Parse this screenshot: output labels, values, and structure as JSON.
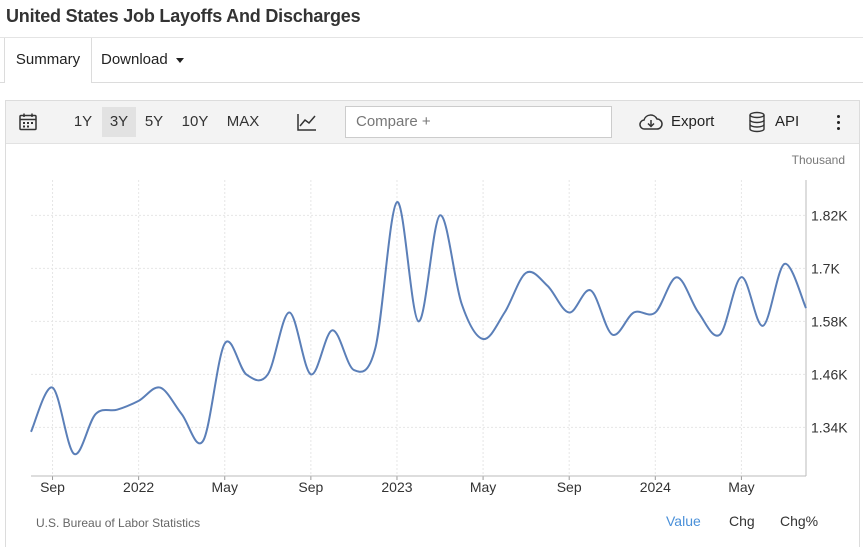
{
  "page": {
    "title": "United States Job Layoffs And Discharges"
  },
  "tabs": {
    "summary": "Summary",
    "download": "Download"
  },
  "toolbar": {
    "ranges": [
      "1Y",
      "3Y",
      "5Y",
      "10Y",
      "MAX"
    ],
    "active_range": "3Y",
    "compare_placeholder": "Compare +",
    "export_label": "Export",
    "api_label": "API"
  },
  "footer": {
    "source": "U.S. Bureau of Labor Statistics",
    "options": [
      "Value",
      "Chg",
      "Chg%"
    ],
    "selected": "Value"
  },
  "colors": {
    "line": "#5b7fb8",
    "grid": "#e6e6e6",
    "accent": "#4a90d9"
  },
  "chart_data": {
    "type": "line",
    "unit_label": "Thousand",
    "y_ticks": [
      1340,
      1460,
      1580,
      1700,
      1820
    ],
    "y_tick_labels": [
      "1.34K",
      "1.46K",
      "1.58K",
      "1.7K",
      "1.82K"
    ],
    "ylim": [
      1230,
      1900
    ],
    "x_ticks": [
      "2021-09",
      "2022-01",
      "2022-05",
      "2022-09",
      "2023-01",
      "2023-05",
      "2023-09",
      "2024-01",
      "2024-05"
    ],
    "x_tick_labels": [
      "Sep",
      "2022",
      "May",
      "Sep",
      "2023",
      "May",
      "Sep",
      "2024",
      "May"
    ],
    "xlim": [
      "2021-08",
      "2024-08"
    ],
    "grid": true,
    "series": [
      {
        "x": [
          "2021-08",
          "2021-09",
          "2021-10",
          "2021-11",
          "2021-12",
          "2022-01",
          "2022-02",
          "2022-03",
          "2022-04",
          "2022-05",
          "2022-06",
          "2022-07",
          "2022-08",
          "2022-09",
          "2022-10",
          "2022-11",
          "2022-12",
          "2023-01",
          "2023-02",
          "2023-03",
          "2023-04",
          "2023-05",
          "2023-06",
          "2023-07",
          "2023-08",
          "2023-09",
          "2023-10",
          "2023-11",
          "2023-12",
          "2024-01",
          "2024-02",
          "2024-03",
          "2024-04",
          "2024-05",
          "2024-06",
          "2024-07",
          "2024-08"
        ],
        "values": [
          1330,
          1430,
          1280,
          1370,
          1380,
          1400,
          1430,
          1370,
          1310,
          1530,
          1460,
          1460,
          1600,
          1460,
          1560,
          1470,
          1520,
          1850,
          1580,
          1820,
          1620,
          1540,
          1600,
          1690,
          1660,
          1600,
          1650,
          1550,
          1600,
          1600,
          1680,
          1600,
          1550,
          1680,
          1570,
          1710,
          1610
        ]
      }
    ]
  }
}
